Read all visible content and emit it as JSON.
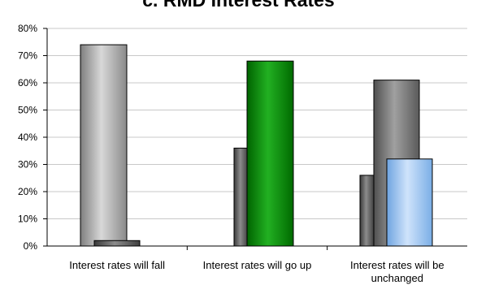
{
  "chart_data": {
    "type": "bar",
    "title": "c. RMD Interest Rates",
    "xlabel": "",
    "ylabel": "",
    "ylim": [
      0,
      0.8
    ],
    "y_ticks": [
      "0%",
      "10%",
      "20%",
      "30%",
      "40%",
      "50%",
      "60%",
      "70%",
      "80%"
    ],
    "grid": true,
    "categories": [
      [
        "Interest rates will fall"
      ],
      [
        "Interest rates will go up"
      ],
      [
        "Interest rates will be",
        "unchanged"
      ]
    ],
    "bars": [
      [
        {
          "value": 0.74,
          "color": "#a6a6a6",
          "layer": "back"
        },
        {
          "value": 0.02,
          "color": "#555555",
          "layer": "front"
        }
      ],
      [
        {
          "value": 0.36,
          "color": "#555555",
          "layer": "back"
        },
        {
          "value": 0.68,
          "color": "#0f8a0f",
          "layer": "front"
        }
      ],
      [
        {
          "value": 0.26,
          "color": "#555555",
          "layer": "back"
        },
        {
          "value": 0.61,
          "color": "#707070",
          "layer": "back"
        },
        {
          "value": 0.32,
          "color": "#9cc6f2",
          "layer": "front"
        }
      ]
    ]
  }
}
